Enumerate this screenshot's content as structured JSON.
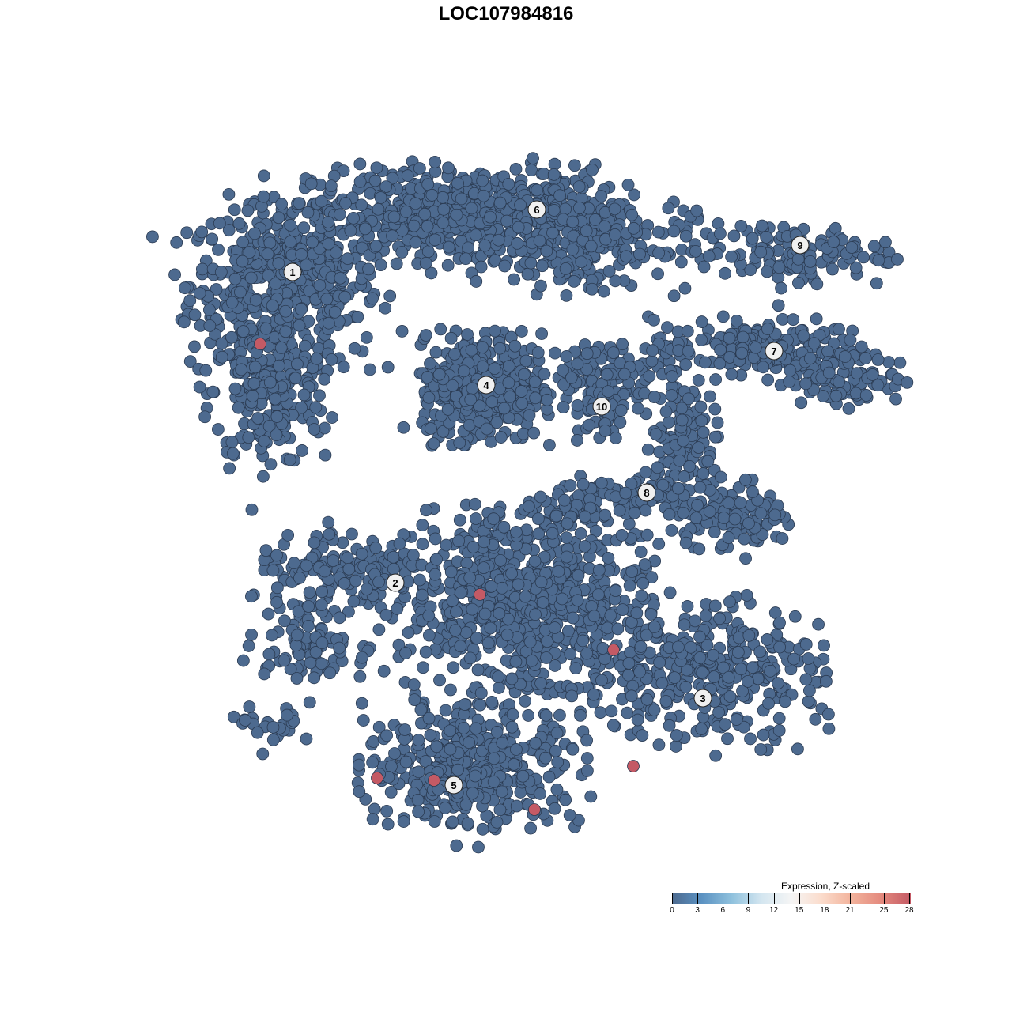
{
  "chart_data": {
    "type": "scatter",
    "title": "LOC107984816",
    "xlabel": "",
    "ylabel": "",
    "grid": false,
    "axes_visible": false,
    "point_color_low": "#4d6a8f",
    "point_color_high": "#c45a65",
    "cluster_labels": [
      {
        "label": "1",
        "x": -27,
        "y": 29.6
      },
      {
        "label": "2",
        "x": -14,
        "y": -9.7
      },
      {
        "label": "3",
        "x": 24.9,
        "y": -24.3
      },
      {
        "label": "4",
        "x": -2.5,
        "y": 15.3
      },
      {
        "label": "5",
        "x": -6.6,
        "y": -35.3
      },
      {
        "label": "6",
        "x": 3.9,
        "y": 37.5
      },
      {
        "label": "7",
        "x": 33.9,
        "y": 19.6
      },
      {
        "label": "8",
        "x": 17.8,
        "y": 1.7
      },
      {
        "label": "9",
        "x": 37.2,
        "y": 33
      },
      {
        "label": "10",
        "x": 12.1,
        "y": 12.6
      }
    ],
    "point_density": [
      {
        "x": -28,
        "y": 28,
        "sx": 8,
        "sy": 7,
        "n": 500
      },
      {
        "x": -30,
        "y": 14,
        "sx": 5,
        "sy": 6,
        "n": 200
      },
      {
        "x": -5,
        "y": 37,
        "sx": 13,
        "sy": 4,
        "n": 600
      },
      {
        "x": 10,
        "y": 33,
        "sx": 9,
        "sy": 4,
        "n": 200
      },
      {
        "x": -3,
        "y": 15,
        "sx": 5,
        "sy": 4.5,
        "n": 420
      },
      {
        "x": 12,
        "y": 17,
        "sx": 6,
        "sy": 2.5,
        "n": 100
      },
      {
        "x": 12,
        "y": 12,
        "sx": 2,
        "sy": 3,
        "n": 40
      },
      {
        "x": 36,
        "y": 32,
        "sx": 8,
        "sy": 2.5,
        "n": 130
      },
      {
        "x": 32,
        "y": 20,
        "sx": 9,
        "sy": 2.5,
        "n": 200
      },
      {
        "x": 43,
        "y": 16,
        "sx": 5,
        "sy": 2,
        "n": 90
      },
      {
        "x": 22,
        "y": 9,
        "sx": 3,
        "sy": 5,
        "n": 110
      },
      {
        "x": 28,
        "y": -1,
        "sx": 5,
        "sy": 3,
        "n": 130
      },
      {
        "x": 14,
        "y": 1,
        "sx": 6,
        "sy": 2,
        "n": 80
      },
      {
        "x": -20,
        "y": -9,
        "sx": 8,
        "sy": 3.5,
        "n": 160
      },
      {
        "x": -25,
        "y": -17,
        "sx": 5,
        "sy": 3,
        "n": 90
      },
      {
        "x": 3,
        "y": -12,
        "sx": 10,
        "sy": 8,
        "n": 750
      },
      {
        "x": 25,
        "y": -21,
        "sx": 10,
        "sy": 6,
        "n": 360
      },
      {
        "x": -4,
        "y": -33,
        "sx": 9,
        "sy": 5,
        "n": 420
      },
      {
        "x": -29,
        "y": -28,
        "sx": 3,
        "sy": 2,
        "n": 25
      }
    ],
    "high_points": [
      {
        "x": -31.1,
        "y": 20.5,
        "value": 28
      },
      {
        "x": -3.3,
        "y": -11.2,
        "value": 28
      },
      {
        "x": 13.6,
        "y": -18.2,
        "value": 28
      },
      {
        "x": 16.1,
        "y": -32.9,
        "value": 28
      },
      {
        "x": -9.1,
        "y": -34.7,
        "value": 28
      },
      {
        "x": -16.3,
        "y": -34.4,
        "value": 28
      },
      {
        "x": 3.6,
        "y": -38.4,
        "value": 28
      }
    ],
    "legend": {
      "title": "Expression, Z-scaled",
      "position": "bottom-right",
      "ticks": [
        "0",
        "3",
        "6",
        "9",
        "12",
        "15",
        "18",
        "21",
        "25",
        "28"
      ],
      "range": [
        0,
        28
      ],
      "colors": [
        "#4d6a8f",
        "#5b92c2",
        "#8fc1dd",
        "#d4e6f0",
        "#f5f5f5",
        "#fbdccc",
        "#f2b39c",
        "#e48a7e",
        "#c45a65"
      ]
    }
  }
}
